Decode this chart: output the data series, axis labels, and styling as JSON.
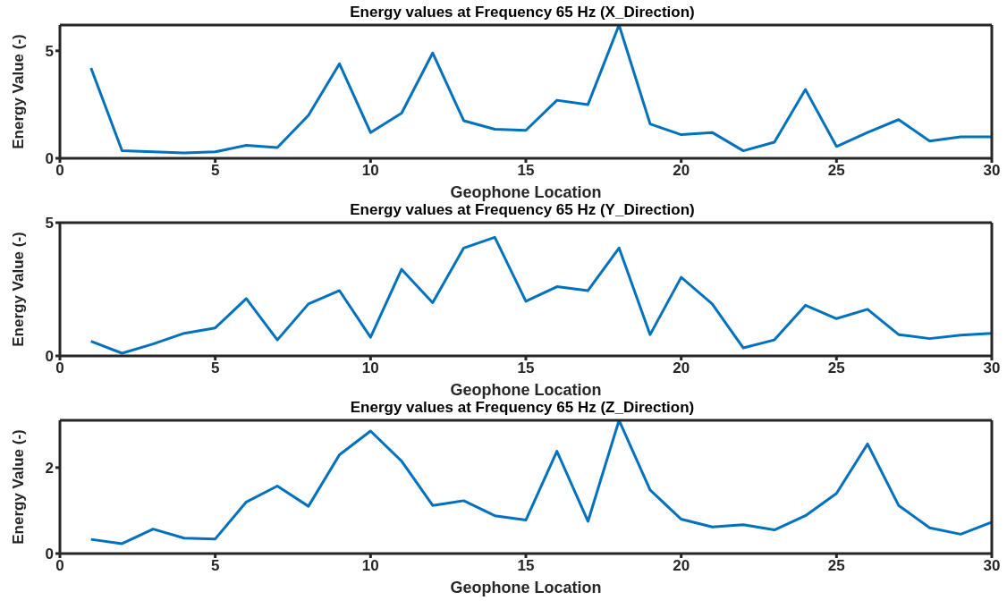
{
  "chart_data": [
    {
      "type": "line",
      "title": "Energy values at Frequency 65 Hz (X_Direction)",
      "xlabel": "Geophone Location",
      "ylabel": "Energy Value (-)",
      "color": "#0072bd",
      "marker": "none",
      "x": [
        1,
        2,
        3,
        4,
        5,
        6,
        7,
        8,
        9,
        10,
        11,
        12,
        13,
        14,
        15,
        16,
        17,
        18,
        19,
        20,
        21,
        22,
        23,
        24,
        25,
        26,
        27,
        28,
        29,
        30
      ],
      "values": [
        4.2,
        0.35,
        0.3,
        0.25,
        0.3,
        0.6,
        0.5,
        2.0,
        4.4,
        1.2,
        2.1,
        4.9,
        1.75,
        1.35,
        1.3,
        2.7,
        2.5,
        6.2,
        1.6,
        1.1,
        1.2,
        0.35,
        0.75,
        3.2,
        0.55,
        1.2,
        1.8,
        0.8,
        1.0,
        1.0
      ],
      "xlim": [
        0,
        30
      ],
      "xticks": [
        0,
        5,
        10,
        15,
        20,
        25,
        30
      ],
      "ylim": [
        0,
        6.2
      ],
      "yticks": [
        0,
        5
      ]
    },
    {
      "type": "line",
      "title": "Energy values at Frequency 65 Hz (Y_Direction)",
      "xlabel": "Geophone Location",
      "ylabel": "Energy Value (-)",
      "color": "#0072bd",
      "marker": "none",
      "x": [
        1,
        2,
        3,
        4,
        5,
        6,
        7,
        8,
        9,
        10,
        11,
        12,
        13,
        14,
        15,
        16,
        17,
        18,
        19,
        20,
        21,
        22,
        23,
        24,
        25,
        26,
        27,
        28,
        29,
        30
      ],
      "values": [
        0.55,
        0.1,
        0.45,
        0.85,
        1.05,
        2.15,
        0.6,
        1.95,
        2.45,
        0.7,
        3.25,
        2.0,
        4.05,
        4.45,
        2.05,
        2.6,
        2.45,
        4.05,
        0.8,
        2.95,
        1.95,
        0.3,
        0.6,
        1.9,
        1.4,
        1.75,
        0.8,
        0.65,
        0.78,
        0.85
      ],
      "xlim": [
        0,
        30
      ],
      "xticks": [
        0,
        5,
        10,
        15,
        20,
        25,
        30
      ],
      "ylim": [
        0,
        5
      ],
      "yticks": [
        0,
        5
      ]
    },
    {
      "type": "line",
      "title": "Energy values at Frequency 65 Hz (Z_Direction)",
      "xlabel": "Geophone Location",
      "ylabel": "Energy Value (-)",
      "color": "#0072bd",
      "marker": "none",
      "x": [
        1,
        2,
        3,
        4,
        5,
        6,
        7,
        8,
        9,
        10,
        11,
        12,
        13,
        14,
        15,
        16,
        17,
        18,
        19,
        20,
        21,
        22,
        23,
        24,
        25,
        26,
        27,
        28,
        29,
        30
      ],
      "values": [
        0.33,
        0.23,
        0.57,
        0.36,
        0.34,
        1.2,
        1.57,
        1.1,
        2.3,
        2.85,
        2.15,
        1.12,
        1.23,
        0.88,
        0.78,
        2.38,
        0.75,
        3.1,
        1.48,
        0.8,
        0.62,
        0.67,
        0.55,
        0.88,
        1.4,
        2.55,
        1.12,
        0.6,
        0.45,
        0.73
      ],
      "xlim": [
        0,
        30
      ],
      "xticks": [
        0,
        5,
        10,
        15,
        20,
        25,
        30
      ],
      "ylim": [
        0,
        3.1
      ],
      "yticks": [
        0,
        2
      ]
    }
  ]
}
